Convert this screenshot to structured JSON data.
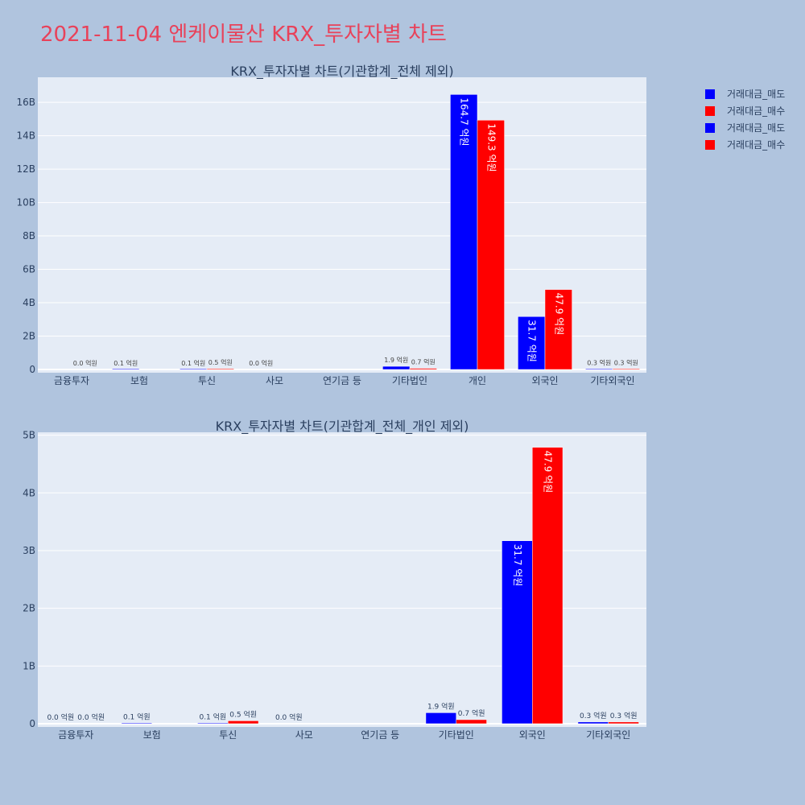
{
  "page_title": "2021-11-04 엔케이물산 KRX_투자자별 차트",
  "colors": {
    "sell": "#0000ff",
    "buy": "#ff0000",
    "plot_bg": "#e5ecf6",
    "page_bg": "#b0c4de",
    "title": "#e8425a"
  },
  "legend": [
    {
      "label": "거래대금_매도",
      "color": "#0000ff"
    },
    {
      "label": "거래대금_매수",
      "color": "#ff0000"
    },
    {
      "label": "거래대금_매도",
      "color": "#0000ff"
    },
    {
      "label": "거래대금_매수",
      "color": "#ff0000"
    }
  ],
  "chart_data": [
    {
      "type": "bar",
      "title": "KRX_투자자별 차트(기관합계_전체 제외)",
      "categories": [
        "금융투자",
        "보험",
        "투신",
        "사모",
        "연기금 등",
        "기타법인",
        "개인",
        "외국인",
        "기타외국인"
      ],
      "series": [
        {
          "name": "거래대금_매도",
          "color": "#0000ff",
          "values": [
            0,
            10000000,
            10000000,
            0,
            null,
            190000000,
            16470000000,
            3170000000,
            30000000
          ],
          "labels": [
            "",
            "0.1 억원",
            "0.1 억원",
            "0.0 억원",
            "",
            "1.9 억원",
            "164.7 억원",
            "31.7 억원",
            "0.3 억원"
          ]
        },
        {
          "name": "거래대금_매수",
          "color": "#ff0000",
          "values": [
            0,
            null,
            50000000,
            null,
            null,
            70000000,
            14930000000,
            4790000000,
            30000000
          ],
          "labels": [
            "0.0 억원",
            "",
            "0.5 억원",
            "",
            "",
            "0.7 억원",
            "149.3 억원",
            "47.9 억원",
            "0.3 억원"
          ]
        }
      ],
      "ylim": [
        0,
        17500000000
      ],
      "yticks": [
        0,
        2000000000,
        4000000000,
        6000000000,
        8000000000,
        10000000000,
        12000000000,
        14000000000,
        16000000000
      ],
      "yticklabels": [
        "0",
        "2B",
        "4B",
        "6B",
        "8B",
        "10B",
        "12B",
        "14B",
        "16B"
      ],
      "grid": true
    },
    {
      "type": "bar",
      "title": "KRX_투자자별 차트(기관합계_전체_개인 제외)",
      "categories": [
        "금융투자",
        "보험",
        "투신",
        "사모",
        "연기금 등",
        "기타법인",
        "외국인",
        "기타외국인"
      ],
      "series": [
        {
          "name": "거래대금_매도",
          "color": "#0000ff",
          "values": [
            0,
            10000000,
            10000000,
            0,
            null,
            190000000,
            3170000000,
            30000000
          ],
          "labels": [
            "0.0 억원",
            "0.1 억원",
            "0.1 억원",
            "0.0 억원",
            "",
            "1.9 억원",
            "31.7 억원",
            "0.3 억원"
          ]
        },
        {
          "name": "거래대금_매수",
          "color": "#ff0000",
          "values": [
            0,
            null,
            50000000,
            null,
            null,
            70000000,
            4790000000,
            30000000
          ],
          "labels": [
            "0.0 억원",
            "",
            "0.5 억원",
            "",
            "",
            "0.7 억원",
            "47.9 억원",
            "0.3 억원"
          ]
        }
      ],
      "ylim": [
        0,
        5050000000
      ],
      "yticks": [
        0,
        1000000000,
        2000000000,
        3000000000,
        4000000000,
        5000000000
      ],
      "yticklabels": [
        "0",
        "1B",
        "2B",
        "3B",
        "4B",
        "5B"
      ],
      "grid": true
    }
  ]
}
